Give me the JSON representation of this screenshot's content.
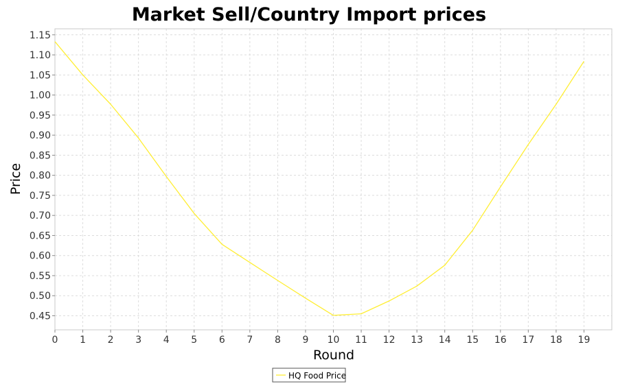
{
  "chart_data": {
    "type": "line",
    "title": "Market Sell/Country Import prices",
    "xlabel": "Round",
    "ylabel": "Price",
    "x": [
      0,
      1,
      2,
      3,
      4,
      5,
      6,
      7,
      8,
      9,
      10,
      11,
      12,
      13,
      14,
      15,
      16,
      17,
      18,
      19
    ],
    "xlim": [
      0,
      20
    ],
    "ylim": [
      0.415,
      1.165
    ],
    "y_ticks": [
      "0.45",
      "0.50",
      "0.55",
      "0.60",
      "0.65",
      "0.70",
      "0.75",
      "0.80",
      "0.85",
      "0.90",
      "0.95",
      "1.00",
      "1.05",
      "1.10",
      "1.15"
    ],
    "x_ticks": [
      "0",
      "1",
      "2",
      "3",
      "4",
      "5",
      "6",
      "7",
      "8",
      "9",
      "10",
      "11",
      "12",
      "13",
      "14",
      "15",
      "16",
      "17",
      "18",
      "19"
    ],
    "grid": true,
    "legend_position": "bottom-center",
    "series": [
      {
        "name": "HQ Food Price",
        "color": "#ffee33",
        "values": [
          1.133,
          1.05,
          0.977,
          0.893,
          0.797,
          0.705,
          0.628,
          0.583,
          0.538,
          0.494,
          0.451,
          0.455,
          0.487,
          0.524,
          0.576,
          0.663,
          0.771,
          0.877,
          0.977,
          1.084
        ]
      }
    ]
  }
}
